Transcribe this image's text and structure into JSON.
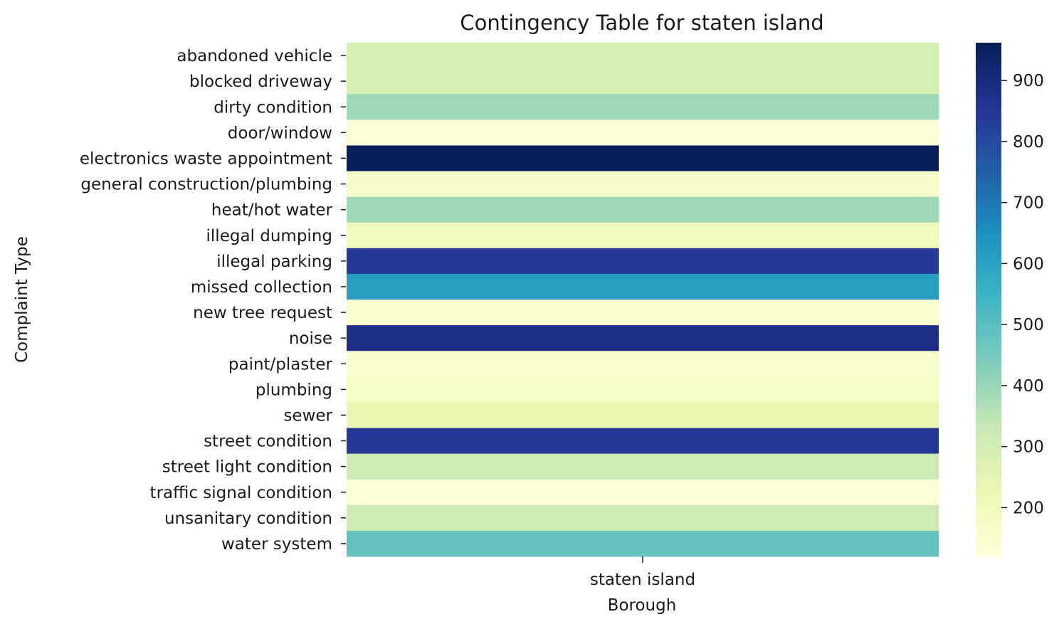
{
  "chart_data": {
    "type": "heatmap",
    "title": "Contingency Table for staten island",
    "xlabel": "Borough",
    "ylabel": "Complaint Type",
    "x_categories": [
      "staten island"
    ],
    "y_categories": [
      "abandoned vehicle",
      "blocked driveway",
      "dirty condition",
      "door/window",
      "electronics waste appointment",
      "general construction/plumbing",
      "heat/hot water",
      "illegal dumping",
      "illegal parking",
      "missed collection",
      "new tree request",
      "noise",
      "paint/plaster",
      "plumbing",
      "sewer",
      "street condition",
      "street light condition",
      "traffic signal condition",
      "unsanitary condition",
      "water system"
    ],
    "values": [
      290,
      290,
      390,
      125,
      960,
      160,
      390,
      190,
      840,
      610,
      140,
      880,
      150,
      170,
      220,
      850,
      315,
      125,
      315,
      480
    ],
    "colorbar": {
      "min": 120,
      "max": 962,
      "ticks": [
        200,
        300,
        400,
        500,
        600,
        700,
        800,
        900
      ],
      "colormap": "YlGnBu"
    }
  }
}
